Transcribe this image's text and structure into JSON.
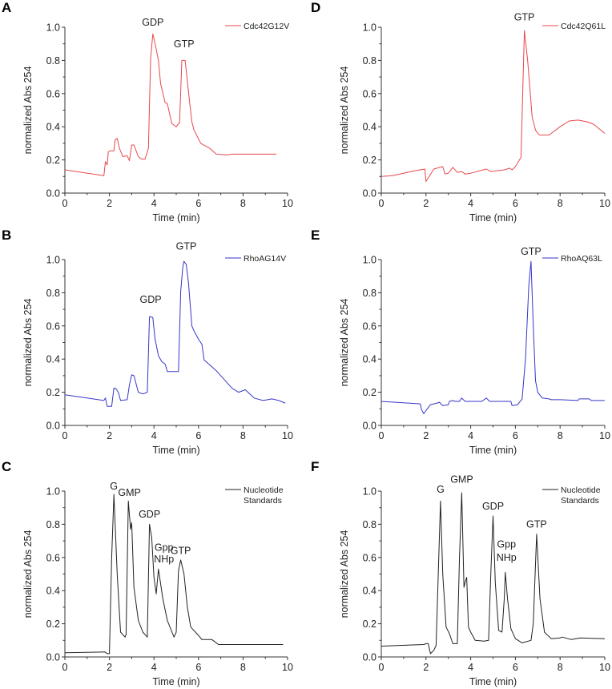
{
  "chart_data": [
    {
      "panel": "A",
      "type": "line",
      "title": "",
      "xlabel": "Time (min)",
      "ylabel": "normalized Abs 254",
      "xlim": [
        0,
        10
      ],
      "ylim": [
        0,
        1.0
      ],
      "xticks": [
        "0",
        "2",
        "4",
        "6",
        "8",
        "10"
      ],
      "yticks": [
        "0.0",
        "0.2",
        "0.4",
        "0.6",
        "0.8",
        "1.0"
      ],
      "grid": false,
      "legend_position": "top-right",
      "color": "#e8474a",
      "series": [
        {
          "name": "Cdc42G12V",
          "x": [
            0,
            1.75,
            1.82,
            1.9,
            1.95,
            2.05,
            2.2,
            2.25,
            2.35,
            2.45,
            2.6,
            2.8,
            2.9,
            3.0,
            3.1,
            3.3,
            3.45,
            3.6,
            3.75,
            3.85,
            3.95,
            4.05,
            4.2,
            4.3,
            4.5,
            4.6,
            4.8,
            5.0,
            5.15,
            5.25,
            5.4,
            5.6,
            5.7,
            5.8,
            6.1,
            6.5,
            6.8,
            7.3,
            7.5,
            9.5
          ],
          "y": [
            0.14,
            0.105,
            0.19,
            0.17,
            0.25,
            0.255,
            0.255,
            0.32,
            0.33,
            0.27,
            0.22,
            0.225,
            0.195,
            0.29,
            0.29,
            0.22,
            0.205,
            0.205,
            0.27,
            0.81,
            0.96,
            0.9,
            0.8,
            0.66,
            0.545,
            0.54,
            0.42,
            0.4,
            0.425,
            0.8,
            0.8,
            0.55,
            0.43,
            0.38,
            0.3,
            0.27,
            0.235,
            0.23,
            0.235,
            0.235
          ]
        }
      ],
      "annotations": [
        {
          "text": "GDP",
          "x": 3.95,
          "y": 1.01
        },
        {
          "text": "GTP",
          "x": 5.35,
          "y": 0.88
        }
      ]
    },
    {
      "panel": "D",
      "type": "line",
      "title": "",
      "xlabel": "Time (min)",
      "ylabel": "normalized Abs 254",
      "xlim": [
        0,
        10
      ],
      "ylim": [
        0,
        1.0
      ],
      "xticks": [
        "0",
        "2",
        "4",
        "6",
        "8",
        "10"
      ],
      "yticks": [
        "0.0",
        "0.2",
        "0.4",
        "0.6",
        "0.8",
        "1.0"
      ],
      "grid": false,
      "legend_position": "top-right",
      "color": "#e8474a",
      "series": [
        {
          "name": "Cdc42Q61L",
          "x": [
            0,
            0.5,
            1.0,
            1.5,
            1.95,
            2.0,
            2.35,
            2.75,
            2.85,
            3.0,
            3.2,
            3.4,
            3.6,
            3.75,
            4.0,
            4.7,
            4.9,
            5.5,
            5.75,
            5.85,
            6.0,
            6.25,
            6.4,
            6.55,
            6.75,
            6.9,
            7.0,
            7.1,
            7.5,
            8.0,
            8.4,
            8.8,
            9.2,
            9.5,
            10.0
          ],
          "y": [
            0.1,
            0.105,
            0.12,
            0.135,
            0.145,
            0.07,
            0.145,
            0.16,
            0.115,
            0.12,
            0.155,
            0.125,
            0.13,
            0.115,
            0.12,
            0.145,
            0.13,
            0.14,
            0.15,
            0.14,
            0.16,
            0.215,
            0.98,
            0.8,
            0.46,
            0.38,
            0.36,
            0.35,
            0.35,
            0.4,
            0.435,
            0.44,
            0.43,
            0.415,
            0.36
          ]
        }
      ],
      "annotations": [
        {
          "text": "GTP",
          "x": 6.4,
          "y": 1.04
        }
      ]
    },
    {
      "panel": "B",
      "type": "line",
      "title": "",
      "xlabel": "Time (min)",
      "ylabel": "normalized Abs 254",
      "xlim": [
        0,
        10
      ],
      "ylim": [
        0,
        1.0
      ],
      "xticks": [
        "0",
        "2",
        "4",
        "6",
        "8",
        "10"
      ],
      "yticks": [
        "0.0",
        "0.2",
        "0.4",
        "0.6",
        "0.8",
        "1.0"
      ],
      "grid": false,
      "legend_position": "top-right",
      "color": "#3636c8",
      "series": [
        {
          "name": "RhoAG14V",
          "x": [
            0,
            1.75,
            1.82,
            1.9,
            2.1,
            2.2,
            2.3,
            2.4,
            2.5,
            2.8,
            2.9,
            3.0,
            3.1,
            3.3,
            3.5,
            3.7,
            3.8,
            3.85,
            3.95,
            4.05,
            4.2,
            4.35,
            4.5,
            4.6,
            5.1,
            5.2,
            5.3,
            5.35,
            5.45,
            5.55,
            5.7,
            5.8,
            6.0,
            6.15,
            6.25,
            6.8,
            7.5,
            7.8,
            8.1,
            8.5,
            8.9,
            9.3,
            9.6,
            9.9
          ],
          "y": [
            0.185,
            0.15,
            0.165,
            0.115,
            0.115,
            0.225,
            0.22,
            0.2,
            0.15,
            0.155,
            0.245,
            0.305,
            0.3,
            0.2,
            0.19,
            0.2,
            0.655,
            0.655,
            0.65,
            0.52,
            0.42,
            0.385,
            0.37,
            0.325,
            0.325,
            0.81,
            0.96,
            0.99,
            0.97,
            0.86,
            0.6,
            0.57,
            0.52,
            0.49,
            0.395,
            0.33,
            0.225,
            0.2,
            0.215,
            0.165,
            0.15,
            0.16,
            0.15,
            0.135
          ]
        }
      ],
      "annotations": [
        {
          "text": "GDP",
          "x": 3.85,
          "y": 0.74
        },
        {
          "text": "GTP",
          "x": 5.45,
          "y": 1.06
        }
      ]
    },
    {
      "panel": "E",
      "type": "line",
      "title": "",
      "xlabel": "Time (min)",
      "ylabel": "normalized Abs 254",
      "xlim": [
        0,
        10
      ],
      "ylim": [
        0,
        1.0
      ],
      "xticks": [
        "0",
        "2",
        "4",
        "6",
        "8",
        "10"
      ],
      "yticks": [
        "0.0",
        "0.2",
        "0.4",
        "0.6",
        "0.8",
        "1.0"
      ],
      "grid": false,
      "legend_position": "top-right",
      "color": "#3636c8",
      "series": [
        {
          "name": "RhoAQ63L",
          "x": [
            0,
            1.75,
            1.8,
            1.9,
            2.0,
            2.2,
            2.5,
            2.6,
            2.7,
            2.75,
            3.0,
            3.05,
            3.2,
            3.3,
            3.5,
            3.6,
            3.75,
            4.0,
            4.5,
            4.7,
            4.85,
            5.8,
            5.85,
            6.1,
            6.3,
            6.45,
            6.6,
            6.7,
            6.8,
            6.9,
            7.0,
            7.2,
            7.5,
            7.6,
            8.0,
            8.8,
            8.85,
            9.3,
            9.4,
            10.0
          ],
          "y": [
            0.145,
            0.13,
            0.095,
            0.07,
            0.09,
            0.125,
            0.135,
            0.14,
            0.125,
            0.12,
            0.125,
            0.145,
            0.15,
            0.145,
            0.145,
            0.165,
            0.145,
            0.145,
            0.145,
            0.165,
            0.145,
            0.145,
            0.12,
            0.125,
            0.16,
            0.4,
            0.84,
            0.99,
            0.6,
            0.27,
            0.2,
            0.165,
            0.16,
            0.155,
            0.155,
            0.15,
            0.16,
            0.16,
            0.15,
            0.15
          ]
        }
      ],
      "annotations": [
        {
          "text": "GTP",
          "x": 6.7,
          "y": 1.03
        }
      ]
    },
    {
      "panel": "C",
      "type": "line",
      "title": "",
      "xlabel": "Time (min)",
      "ylabel": "normalized Abs 254",
      "xlim": [
        0,
        10
      ],
      "ylim": [
        0,
        1.0
      ],
      "xticks": [
        "0",
        "2",
        "4",
        "6",
        "8",
        "10"
      ],
      "yticks": [
        "0.0",
        "0.2",
        "0.4",
        "0.6",
        "0.8",
        "1.0"
      ],
      "grid": false,
      "legend_position": "top-right",
      "color": "#222222",
      "series": [
        {
          "name": "Nucleotide Standards",
          "x": [
            0,
            1.8,
            1.9,
            2.0,
            2.1,
            2.2,
            2.35,
            2.5,
            2.7,
            2.75,
            2.85,
            2.95,
            3.0,
            3.1,
            3.3,
            3.5,
            3.7,
            3.8,
            3.9,
            4.0,
            4.1,
            4.2,
            4.4,
            4.6,
            4.9,
            5.0,
            5.1,
            5.2,
            5.35,
            5.5,
            5.65,
            6.0,
            6.15,
            6.6,
            6.9,
            7.5,
            9.0,
            9.8
          ],
          "y": [
            0.025,
            0.03,
            0.02,
            0.02,
            0.6,
            0.98,
            0.5,
            0.15,
            0.12,
            0.135,
            0.94,
            0.77,
            0.81,
            0.42,
            0.22,
            0.15,
            0.12,
            0.8,
            0.72,
            0.48,
            0.38,
            0.53,
            0.35,
            0.22,
            0.12,
            0.15,
            0.52,
            0.585,
            0.5,
            0.3,
            0.18,
            0.13,
            0.105,
            0.105,
            0.075,
            0.075,
            0.075,
            0.075
          ]
        }
      ],
      "annotations": [
        {
          "text": "G",
          "x": 2.2,
          "y": 1.01
        },
        {
          "text": "GMP",
          "x": 2.9,
          "y": 0.97
        },
        {
          "text": "GDP",
          "x": 3.8,
          "y": 0.84
        },
        {
          "text": "Gpp",
          "x": 4.45,
          "y": 0.64
        },
        {
          "text": "NHp",
          "x": 4.45,
          "y": 0.57
        },
        {
          "text": "GTP",
          "x": 5.2,
          "y": 0.62
        }
      ]
    },
    {
      "panel": "F",
      "type": "line",
      "title": "",
      "xlabel": "Time (min)",
      "ylabel": "normalized Abs 254",
      "xlim": [
        0,
        10
      ],
      "ylim": [
        0,
        1.0
      ],
      "xticks": [
        "0",
        "2",
        "4",
        "6",
        "8",
        "10"
      ],
      "yticks": [
        "0.0",
        "0.2",
        "0.4",
        "0.6",
        "0.8",
        "1.0"
      ],
      "grid": false,
      "legend_position": "top-right",
      "color": "#222222",
      "series": [
        {
          "name": "Nucleotide Standards",
          "x": [
            0,
            1.9,
            2.0,
            2.1,
            2.2,
            2.35,
            2.45,
            2.55,
            2.65,
            2.75,
            2.9,
            3.05,
            3.2,
            3.4,
            3.5,
            3.6,
            3.7,
            3.75,
            3.82,
            3.9,
            4.0,
            4.2,
            4.6,
            4.8,
            4.9,
            5.0,
            5.1,
            5.25,
            5.4,
            5.5,
            5.55,
            5.65,
            5.8,
            6.0,
            6.3,
            6.7,
            6.8,
            6.95,
            7.1,
            7.3,
            7.6,
            8.0,
            8.1,
            8.5,
            8.9,
            10.0
          ],
          "y": [
            0.065,
            0.075,
            0.08,
            0.08,
            0.02,
            0.04,
            0.07,
            0.5,
            0.94,
            0.5,
            0.18,
            0.14,
            0.08,
            0.08,
            0.6,
            0.99,
            0.42,
            0.45,
            0.48,
            0.18,
            0.15,
            0.1,
            0.095,
            0.1,
            0.5,
            0.85,
            0.45,
            0.16,
            0.15,
            0.35,
            0.51,
            0.35,
            0.17,
            0.11,
            0.085,
            0.1,
            0.2,
            0.74,
            0.35,
            0.15,
            0.11,
            0.115,
            0.12,
            0.105,
            0.115,
            0.11
          ]
        }
      ],
      "annotations": [
        {
          "text": "G",
          "x": 2.65,
          "y": 0.99
        },
        {
          "text": "GMP",
          "x": 3.6,
          "y": 1.05
        },
        {
          "text": "GDP",
          "x": 5.0,
          "y": 0.89
        },
        {
          "text": "Gpp",
          "x": 5.6,
          "y": 0.66
        },
        {
          "text": "NHp",
          "x": 5.6,
          "y": 0.58
        },
        {
          "text": "GTP",
          "x": 6.95,
          "y": 0.78
        }
      ]
    }
  ]
}
